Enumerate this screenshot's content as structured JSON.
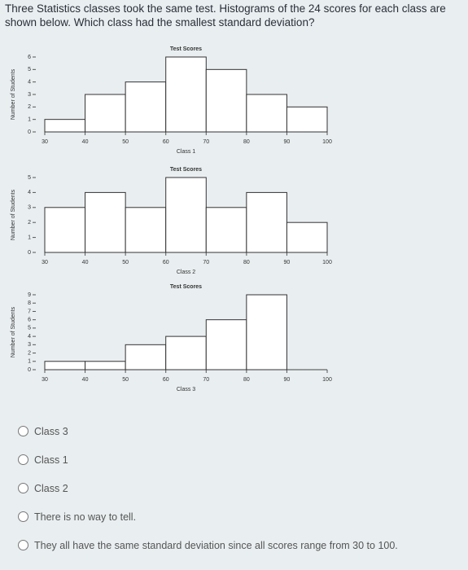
{
  "question": "Three Statistics classes took the same test. Histograms of the 24 scores for each class are shown below. Which class had the smallest standard deviation?",
  "chart_data": [
    {
      "type": "histogram",
      "title": "Test Scores",
      "xlabel": "Class 1",
      "ylabel": "Number of Students",
      "bins": [
        30,
        40,
        50,
        60,
        70,
        80,
        90,
        100
      ],
      "values": [
        1,
        3,
        4,
        6,
        5,
        3,
        2
      ],
      "color": "#ffffff",
      "xlim": [
        30,
        100
      ],
      "xticks": [
        30,
        40,
        50,
        60,
        70,
        80,
        90,
        100
      ],
      "ylim": [
        0,
        6
      ],
      "yticks": [
        0,
        1,
        2,
        3,
        4,
        5,
        6
      ]
    },
    {
      "type": "histogram",
      "title": "Test Scores",
      "xlabel": "Class 2",
      "ylabel": "Number of Students",
      "bins": [
        30,
        40,
        50,
        60,
        70,
        80,
        90,
        100
      ],
      "values": [
        3,
        4,
        3,
        5,
        3,
        4,
        2
      ],
      "color": "#ffffff",
      "xlim": [
        30,
        100
      ],
      "xticks": [
        30,
        40,
        50,
        60,
        70,
        80,
        90,
        100
      ],
      "ylim": [
        0,
        5
      ],
      "yticks": [
        0,
        1,
        2,
        3,
        4,
        5
      ]
    },
    {
      "type": "histogram",
      "title": "Test Scores",
      "xlabel": "Class 3",
      "ylabel": "Number of Students",
      "bins": [
        30,
        40,
        50,
        60,
        70,
        80,
        90,
        100
      ],
      "values": [
        1,
        1,
        3,
        4,
        6,
        9,
        0
      ],
      "color": "#ffffff",
      "xlim": [
        30,
        100
      ],
      "xticks": [
        30,
        40,
        50,
        60,
        70,
        80,
        90,
        100
      ],
      "ylim": [
        0,
        9
      ],
      "yticks": [
        0,
        1,
        2,
        3,
        4,
        5,
        6,
        7,
        8,
        9
      ]
    }
  ],
  "options": [
    "Class 3",
    "Class 1",
    "Class 2",
    "There is no way to tell.",
    "They all have the same standard deviation since all scores range from 30 to 100."
  ]
}
